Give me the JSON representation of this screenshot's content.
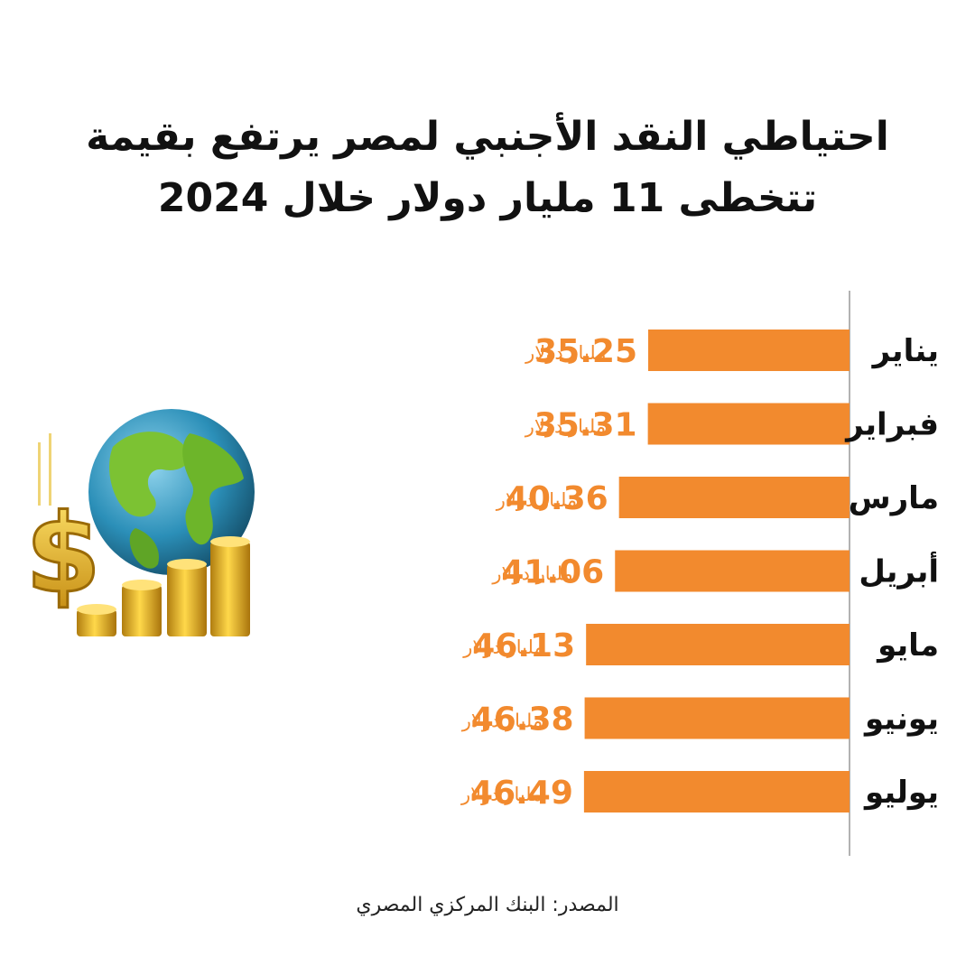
{
  "title": "احتياطي النقد الأجنبي لمصر يرتفع بقيمة تتخطى 11 مليار دولار خلال 2024",
  "source": "المصدر: البنك المركزي المصري",
  "chart_data": {
    "type": "bar",
    "orientation": "horizontal",
    "categories": [
      "يناير",
      "فبراير",
      "مارس",
      "أبريل",
      "مايو",
      "يونيو",
      "يوليو"
    ],
    "values": [
      35.25,
      35.31,
      40.36,
      41.06,
      46.13,
      46.38,
      46.49
    ],
    "value_labels": [
      "35.25",
      "35.31",
      "40.36",
      "41.06",
      "46.13",
      "46.38",
      "46.49"
    ],
    "unit_label": "مليار دولار",
    "bar_color": "#F28A2E",
    "label_color": "#F28A2E",
    "category_color": "#111111"
  },
  "illustration": {
    "icons": [
      "globe-icon",
      "dollar-sign-icon",
      "coin-stack-icon"
    ]
  }
}
